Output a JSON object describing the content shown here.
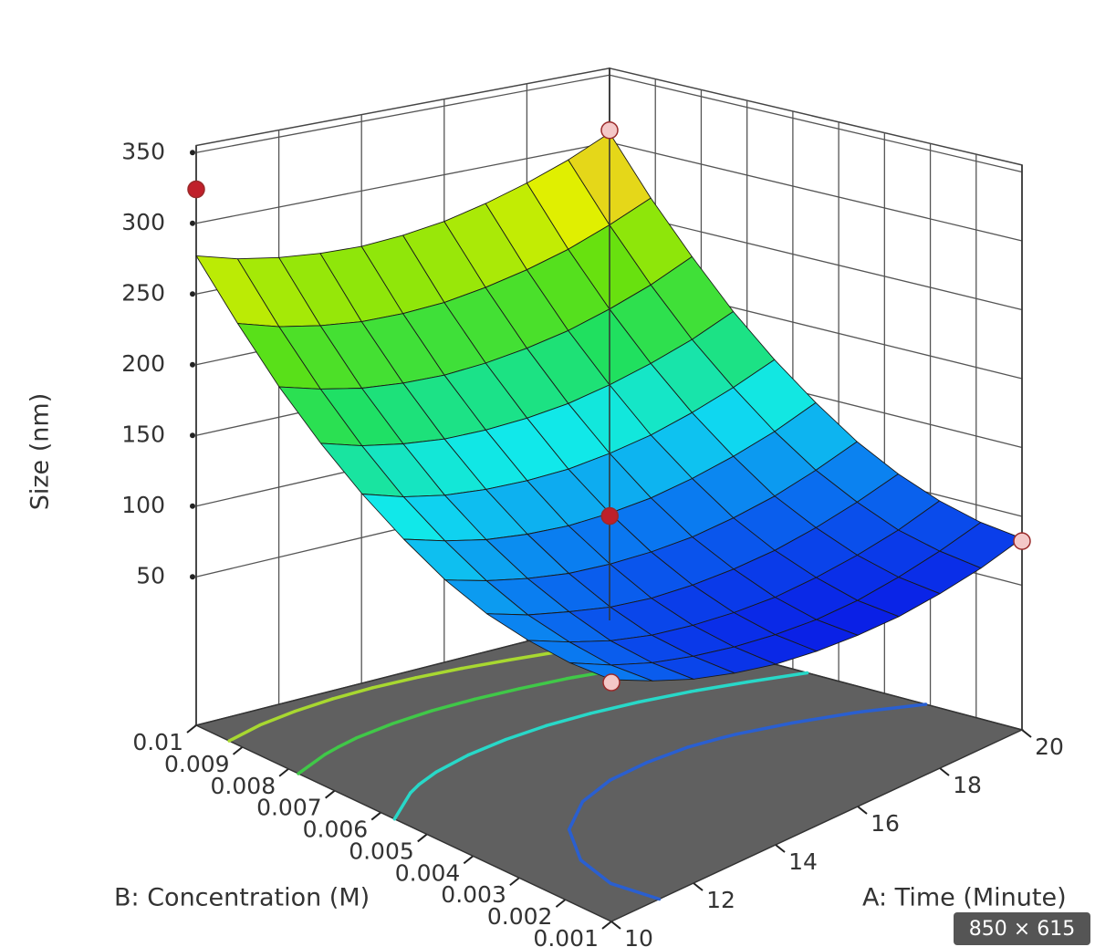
{
  "chart_data": {
    "type": "surface",
    "xlabel": "A: Time (Minute)",
    "ylabel": "B: Concentration (M)",
    "zlabel": "Size (nm)",
    "xlim": [
      10,
      20
    ],
    "xticks": [
      10,
      12,
      14,
      16,
      18,
      20
    ],
    "ylim": [
      0.001,
      0.01
    ],
    "yticks": [
      0.001,
      0.002,
      0.003,
      0.004,
      0.005,
      0.006,
      0.007,
      0.008,
      0.009,
      0.01
    ],
    "zlim": [
      -55,
      355
    ],
    "zticks": [
      50,
      100,
      150,
      200,
      250,
      300,
      350
    ],
    "colormap": [
      "#0a1ee6",
      "#0a78f0",
      "#10e8f0",
      "#20e060",
      "#60e010",
      "#e0f000",
      "#f0a050"
    ],
    "surface": {
      "A": [
        10,
        11,
        12,
        13,
        14,
        15,
        16,
        17,
        18,
        19,
        20
      ],
      "B": [
        0.001,
        0.0019,
        0.0028,
        0.0037,
        0.0046,
        0.0055,
        0.0064,
        0.0073,
        0.0082,
        0.0091,
        0.01
      ],
      "z": [
        [
          116,
          102,
          90,
          81,
          74,
          70,
          68,
          68,
          71,
          76,
          84
        ],
        [
          114,
          100,
          89,
          81,
          75,
          71,
          69,
          70,
          74,
          80,
          88
        ],
        [
          116,
          103,
          92,
          84,
          79,
          76,
          75,
          77,
          81,
          87,
          96
        ],
        [
          121,
          109,
          100,
          92,
          87,
          85,
          85,
          87,
          92,
          99,
          108
        ],
        [
          131,
          120,
          111,
          104,
          100,
          98,
          98,
          101,
          106,
          114,
          124
        ],
        [
          146,
          135,
          126,
          120,
          116,
          115,
          116,
          120,
          126,
          134,
          145
        ],
        [
          164,
          153,
          145,
          140,
          137,
          136,
          138,
          142,
          149,
          158,
          169
        ],
        [
          186,
          176,
          169,
          164,
          162,
          162,
          164,
          169,
          176,
          185,
          197
        ],
        [
          212,
          203,
          196,
          192,
          190,
          191,
          194,
          199,
          207,
          217,
          230
        ],
        [
          243,
          234,
          228,
          224,
          223,
          224,
          228,
          234,
          242,
          253,
          266
        ],
        [
          277,
          269,
          264,
          261,
          260,
          262,
          266,
          273,
          282,
          293,
          307
        ]
      ]
    },
    "contours": {
      "levels": [
        100,
        150,
        200,
        250
      ],
      "colors": [
        "#2a5fd0",
        "#28d8c8",
        "#40c848",
        "#a8d830"
      ]
    },
    "design_points": {
      "A": [
        10,
        20,
        15,
        20,
        10
      ],
      "B": [
        0.01,
        0.01,
        0.0055,
        0.001,
        0.001
      ],
      "z": [
        324,
        309,
        113,
        82,
        114
      ],
      "colors": [
        "#c0202a",
        "#f4c8c8",
        "#c0202a",
        "#f4c8c8",
        "#f4c8c8"
      ]
    }
  },
  "badge": "850 × 615"
}
